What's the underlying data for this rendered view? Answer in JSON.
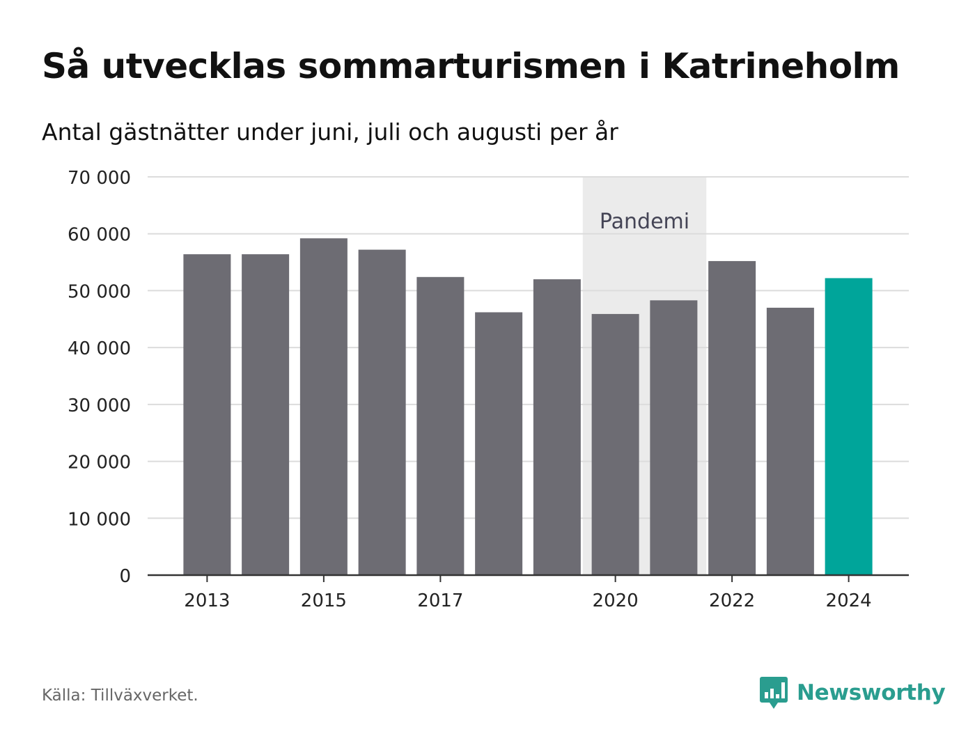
{
  "title": "Så utvecklas sommarturismen i Katrineholm",
  "subtitle": "Antal gästnätter under juni, juli och augusti per år",
  "source": "Källa: Tillväxverket.",
  "brand": {
    "name": "Newsworthy",
    "icon": "newsworthy-logo-icon"
  },
  "colors": {
    "bar": "#6d6c73",
    "highlight": "#00a59a",
    "band": "#ebebeb",
    "grid": "#dcdcdc",
    "axis": "#333333",
    "brand": "#2a9d8f"
  },
  "chart_data": {
    "type": "bar",
    "categories": [
      "2013",
      "2014",
      "2015",
      "2016",
      "2017",
      "2018",
      "2019",
      "2020",
      "2021",
      "2022",
      "2023",
      "2024"
    ],
    "values": [
      56400,
      56400,
      59200,
      57200,
      52400,
      46200,
      52000,
      45900,
      48300,
      55200,
      47000,
      52200
    ],
    "highlight_category": "2024",
    "x_tick_labels": [
      "2013",
      "2015",
      "2017",
      "2020",
      "2022",
      "2024"
    ],
    "y_ticks": [
      0,
      10000,
      20000,
      30000,
      40000,
      50000,
      60000,
      70000
    ],
    "y_tick_labels": [
      "0",
      "10 000",
      "20 000",
      "30 000",
      "40 000",
      "50 000",
      "60 000",
      "70 000"
    ],
    "ylim": [
      0,
      70000
    ],
    "grid": true,
    "annotation": {
      "label": "Pandemi",
      "from": "2020",
      "to": "2021"
    }
  }
}
